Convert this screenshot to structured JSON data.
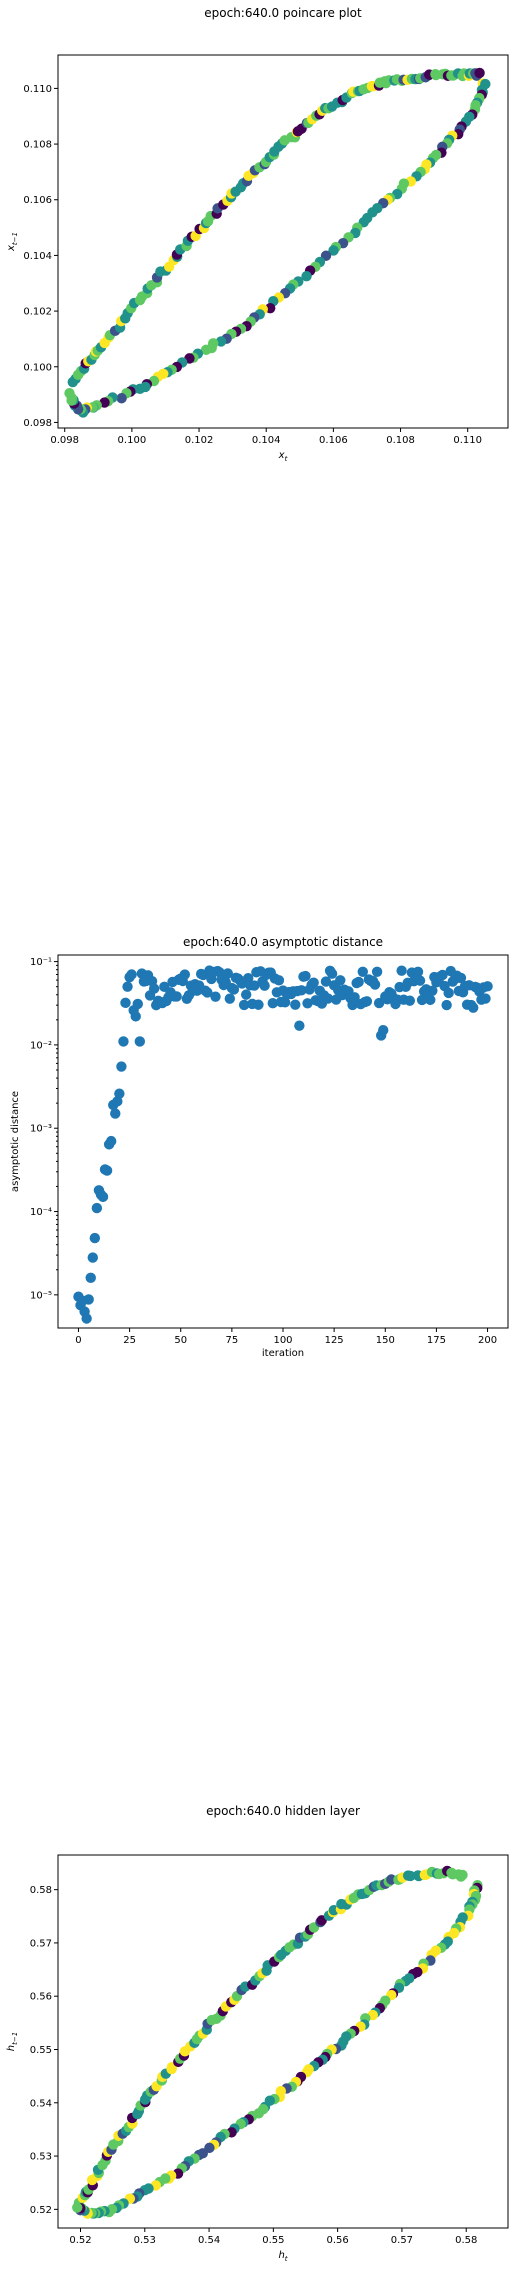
{
  "chart_data": [
    {
      "type": "scatter",
      "title": "epoch:640.0 poincare plot",
      "xlabel": "x_t",
      "ylabel": "x_{t-1}",
      "xlim": [
        0.0978,
        0.1112
      ],
      "ylim": [
        0.0978,
        0.1112
      ],
      "xticks": [
        "0.098",
        "0.100",
        "0.102",
        "0.104",
        "0.106",
        "0.108",
        "0.110"
      ],
      "yticks": [
        "0.098",
        "0.100",
        "0.102",
        "0.104",
        "0.106",
        "0.108",
        "0.110"
      ],
      "colormap": "viridis",
      "loop": {
        "upper": [
          [
            0.0983,
            0.0994
          ],
          [
            0.0986,
            0.1001
          ],
          [
            0.099,
            0.1006
          ],
          [
            0.0995,
            0.1013
          ],
          [
            0.1,
            0.1021
          ],
          [
            0.1005,
            0.1028
          ],
          [
            0.101,
            0.1035
          ],
          [
            0.1015,
            0.1042
          ],
          [
            0.102,
            0.1049
          ],
          [
            0.1025,
            0.1055
          ],
          [
            0.103,
            0.1062
          ],
          [
            0.1035,
            0.1068
          ],
          [
            0.104,
            0.1074
          ],
          [
            0.1045,
            0.108
          ],
          [
            0.105,
            0.1085
          ],
          [
            0.1055,
            0.109
          ],
          [
            0.106,
            0.1094
          ],
          [
            0.1065,
            0.1098
          ],
          [
            0.107,
            0.11
          ],
          [
            0.1075,
            0.1102
          ],
          [
            0.108,
            0.1103
          ],
          [
            0.1085,
            0.1104
          ],
          [
            0.109,
            0.1105
          ],
          [
            0.1095,
            0.1105
          ],
          [
            0.11,
            0.1105
          ],
          [
            0.1103,
            0.1105
          ]
        ],
        "lower": [
          [
            0.1105,
            0.1102
          ],
          [
            0.1104,
            0.1097
          ],
          [
            0.1101,
            0.1091
          ],
          [
            0.1097,
            0.1084
          ],
          [
            0.1092,
            0.1077
          ],
          [
            0.1087,
            0.1071
          ],
          [
            0.108,
            0.1064
          ],
          [
            0.1073,
            0.1057
          ],
          [
            0.1066,
            0.1048
          ],
          [
            0.1058,
            0.104
          ],
          [
            0.105,
            0.1031
          ],
          [
            0.1042,
            0.1023
          ],
          [
            0.1035,
            0.1016
          ],
          [
            0.1028,
            0.101
          ],
          [
            0.102,
            0.1005
          ],
          [
            0.1012,
            0.0999
          ],
          [
            0.1005,
            0.0994
          ],
          [
            0.0998,
            0.099
          ],
          [
            0.099,
            0.0986
          ],
          [
            0.0985,
            0.0984
          ],
          [
            0.0983,
            0.0986
          ],
          [
            0.0982,
            0.099
          ]
        ]
      }
    },
    {
      "type": "scatter",
      "title": "epoch:640.0 asymptotic distance",
      "xlabel": "iteration",
      "ylabel": "asymptotic distance",
      "xlim": [
        -10,
        210
      ],
      "yscale": "log",
      "ylim": [
        4e-06,
        0.12
      ],
      "xticks": [
        0,
        25,
        50,
        75,
        100,
        125,
        150,
        175,
        200
      ],
      "yticks": [
        1e-05,
        0.0001,
        0.001,
        0.01,
        0.1
      ],
      "ytick_labels": [
        "10⁻⁵",
        "10⁻⁴",
        "10⁻³",
        "10⁻²",
        "10⁻¹"
      ],
      "color": "#1f77b4",
      "early": [
        [
          0,
          9.5e-06
        ],
        [
          1,
          7.5e-06
        ],
        [
          2,
          8.5e-06
        ],
        [
          3,
          6.3e-06
        ],
        [
          4,
          5.2e-06
        ],
        [
          5,
          8.8e-06
        ],
        [
          6,
          1.6e-05
        ],
        [
          7,
          2.8e-05
        ],
        [
          8,
          4.8e-05
        ],
        [
          9,
          0.00011
        ],
        [
          10,
          0.00018
        ],
        [
          11,
          0.00016
        ],
        [
          12,
          0.00015
        ],
        [
          13,
          0.00032
        ],
        [
          14,
          0.00031
        ],
        [
          15,
          0.00064
        ],
        [
          16,
          0.0007
        ],
        [
          17,
          0.0019
        ],
        [
          18,
          0.0015
        ],
        [
          19,
          0.0021
        ],
        [
          20,
          0.0026
        ],
        [
          21,
          0.0055
        ],
        [
          22,
          0.011
        ],
        [
          23,
          0.032
        ],
        [
          24,
          0.05
        ],
        [
          25,
          0.065
        ],
        [
          26,
          0.07
        ],
        [
          27,
          0.026
        ],
        [
          28,
          0.022
        ],
        [
          29,
          0.031
        ],
        [
          30,
          0.011
        ]
      ],
      "late_range": [
        31,
        200
      ],
      "late_band": [
        0.03,
        0.08
      ],
      "outliers": [
        [
          108,
          0.017
        ],
        [
          148,
          0.013
        ],
        [
          149,
          0.015
        ],
        [
          193,
          0.028
        ]
      ]
    },
    {
      "type": "scatter",
      "title": "epoch:640.0 hidden layer",
      "xlabel": "h_t",
      "ylabel": "h_{t-1}",
      "xlim": [
        0.5165,
        0.5865
      ],
      "ylim": [
        0.5165,
        0.5865
      ],
      "xticks": [
        "0.52",
        "0.53",
        "0.54",
        "0.55",
        "0.56",
        "0.57",
        "0.58"
      ],
      "yticks": [
        "0.52",
        "0.53",
        "0.54",
        "0.55",
        "0.56",
        "0.57",
        "0.58"
      ],
      "colormap": "viridis",
      "loop": {
        "upper": [
          [
            0.52,
            0.5215
          ],
          [
            0.5215,
            0.524
          ],
          [
            0.523,
            0.5275
          ],
          [
            0.525,
            0.5315
          ],
          [
            0.527,
            0.535
          ],
          [
            0.529,
            0.5385
          ],
          [
            0.531,
            0.542
          ],
          [
            0.5335,
            0.5455
          ],
          [
            0.536,
            0.549
          ],
          [
            0.5385,
            0.5525
          ],
          [
            0.541,
            0.556
          ],
          [
            0.544,
            0.5595
          ],
          [
            0.547,
            0.563
          ],
          [
            0.55,
            0.5665
          ],
          [
            0.553,
            0.5695
          ],
          [
            0.556,
            0.5725
          ],
          [
            0.559,
            0.5755
          ],
          [
            0.562,
            0.578
          ],
          [
            0.565,
            0.58
          ],
          [
            0.568,
            0.5815
          ],
          [
            0.571,
            0.5825
          ],
          [
            0.574,
            0.583
          ],
          [
            0.577,
            0.5832
          ],
          [
            0.5795,
            0.5825
          ]
        ],
        "lower": [
          [
            0.5815,
            0.581
          ],
          [
            0.5815,
            0.579
          ],
          [
            0.5805,
            0.576
          ],
          [
            0.5785,
            0.5725
          ],
          [
            0.576,
            0.569
          ],
          [
            0.573,
            0.5655
          ],
          [
            0.57,
            0.562
          ],
          [
            0.567,
            0.5585
          ],
          [
            0.564,
            0.555
          ],
          [
            0.561,
            0.5515
          ],
          [
            0.558,
            0.5485
          ],
          [
            0.555,
            0.5455
          ],
          [
            0.552,
            0.5425
          ],
          [
            0.549,
            0.5395
          ],
          [
            0.5455,
            0.5365
          ],
          [
            0.542,
            0.5335
          ],
          [
            0.5385,
            0.53
          ],
          [
            0.535,
            0.527
          ],
          [
            0.5315,
            0.5245
          ],
          [
            0.528,
            0.5222
          ],
          [
            0.525,
            0.52
          ],
          [
            0.5225,
            0.519
          ],
          [
            0.5205,
            0.5195
          ],
          [
            0.5195,
            0.5205
          ]
        ]
      }
    }
  ]
}
